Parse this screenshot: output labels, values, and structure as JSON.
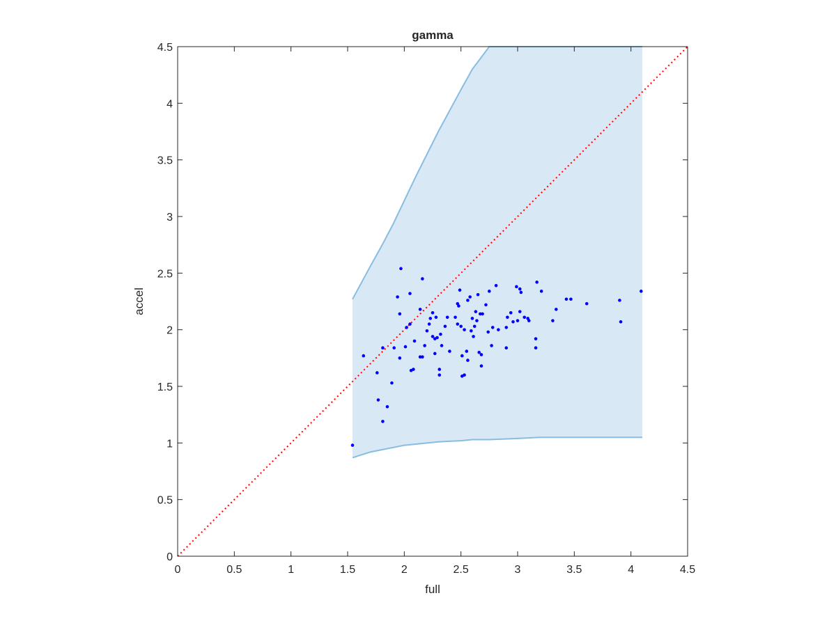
{
  "chart_data": {
    "type": "scatter",
    "title": "gamma",
    "x_label": "full",
    "y_label": "accel",
    "xlim": [
      0,
      4.5
    ],
    "ylim": [
      0,
      4.5
    ],
    "xticks": [
      0,
      0.5,
      1,
      1.5,
      2,
      2.5,
      3,
      3.5,
      4,
      4.5
    ],
    "yticks": [
      0,
      0.5,
      1,
      1.5,
      2,
      2.5,
      3,
      3.5,
      4,
      4.5
    ],
    "band": {
      "color": "#d9e8f5",
      "line_color": "#86bde0",
      "x": [
        1.543,
        1.7,
        1.8,
        1.9,
        2.0,
        2.1,
        2.3,
        2.5,
        2.6,
        2.75,
        3.0,
        3.2,
        4.1
      ],
      "lower": [
        0.87,
        0.92,
        0.94,
        0.96,
        0.98,
        0.99,
        1.01,
        1.02,
        1.03,
        1.03,
        1.04,
        1.05,
        1.05
      ],
      "upper": [
        2.27,
        2.56,
        2.74,
        2.93,
        3.14,
        3.35,
        3.75,
        4.12,
        4.3,
        4.5,
        4.5,
        4.5,
        4.5
      ]
    },
    "reference_line": {
      "color": "#ff0000",
      "x": [
        0,
        4.5
      ],
      "y": [
        0,
        4.5
      ]
    },
    "color": "#0000ff",
    "x": [
      1.543,
      1.64,
      1.76,
      1.77,
      1.81,
      1.81,
      1.85,
      1.89,
      1.91,
      1.94,
      1.96,
      1.96,
      1.97,
      2.01,
      2.02,
      2.05,
      2.05,
      2.06,
      2.08,
      2.09,
      2.14,
      2.14,
      2.16,
      2.16,
      2.18,
      2.2,
      2.22,
      2.23,
      2.25,
      2.25,
      2.27,
      2.27,
      2.28,
      2.29,
      2.31,
      2.31,
      2.32,
      2.33,
      2.36,
      2.38,
      2.4,
      2.45,
      2.47,
      2.47,
      2.48,
      2.49,
      2.5,
      2.51,
      2.51,
      2.53,
      2.53,
      2.55,
      2.56,
      2.56,
      2.58,
      2.59,
      2.6,
      2.61,
      2.62,
      2.63,
      2.64,
      2.65,
      2.66,
      2.67,
      2.68,
      2.68,
      2.69,
      2.72,
      2.74,
      2.75,
      2.77,
      2.78,
      2.81,
      2.83,
      2.9,
      2.9,
      2.91,
      2.94,
      2.96,
      2.99,
      3.0,
      3.02,
      3.02,
      3.03,
      3.06,
      3.09,
      3.1,
      3.16,
      3.16,
      3.17,
      3.21,
      3.31,
      3.34,
      3.43,
      3.47,
      3.61,
      3.9,
      3.91,
      4.09
    ],
    "values": [
      0.98,
      1.77,
      1.62,
      1.38,
      1.19,
      1.84,
      1.32,
      1.53,
      1.84,
      2.29,
      2.14,
      1.75,
      2.54,
      1.85,
      2.02,
      2.32,
      2.05,
      1.64,
      1.65,
      1.9,
      2.18,
      1.76,
      1.76,
      2.45,
      1.86,
      1.99,
      2.05,
      2.1,
      2.15,
      1.94,
      1.92,
      1.79,
      2.11,
      1.93,
      1.65,
      1.6,
      1.96,
      1.86,
      2.03,
      2.11,
      1.81,
      2.11,
      2.05,
      2.23,
      2.21,
      2.35,
      2.03,
      1.59,
      1.77,
      1.6,
      2.0,
      1.81,
      1.73,
      2.26,
      2.29,
      1.99,
      2.1,
      1.94,
      2.03,
      2.16,
      2.08,
      2.31,
      1.8,
      2.14,
      1.78,
      1.68,
      2.14,
      2.22,
      1.98,
      2.34,
      1.86,
      2.02,
      2.39,
      2.0,
      1.84,
      2.02,
      2.11,
      2.15,
      2.07,
      2.38,
      2.08,
      2.36,
      2.16,
      2.33,
      2.11,
      2.1,
      2.08,
      1.92,
      1.84,
      2.42,
      2.34,
      2.08,
      2.18,
      2.27,
      2.27,
      2.23,
      2.26,
      2.07,
      2.34
    ]
  }
}
